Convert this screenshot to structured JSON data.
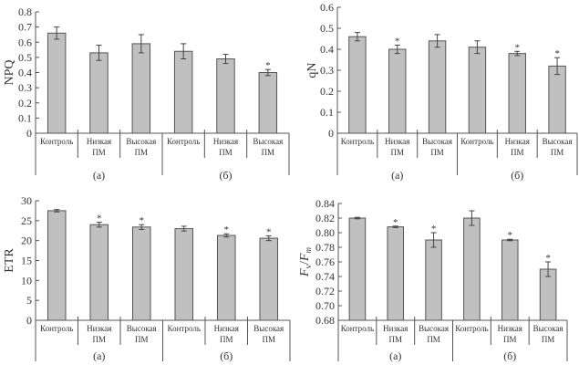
{
  "chart_data": [
    {
      "type": "bar",
      "ylabel": "NPQ",
      "ylim": [
        0,
        0.8
      ],
      "yticks": [
        "0",
        "0.1",
        "0.2",
        "0.3",
        "0.4",
        "0.5",
        "0.6",
        "0.7",
        "0.8"
      ],
      "yticks_values": [
        0,
        0.1,
        0.2,
        0.3,
        0.4,
        0.5,
        0.6,
        0.7,
        0.8
      ],
      "categories": [
        [
          "Контроль"
        ],
        [
          "Низкая",
          "ПМ"
        ],
        [
          "Высокая",
          "ПМ"
        ],
        [
          "Контроль"
        ],
        [
          "Низкая",
          "ПМ"
        ],
        [
          "Высокая",
          "ПМ"
        ]
      ],
      "groups": [
        "(а)",
        "(б)"
      ],
      "values": [
        0.66,
        0.53,
        0.59,
        0.54,
        0.49,
        0.4
      ],
      "errors": [
        0.04,
        0.05,
        0.06,
        0.05,
        0.03,
        0.02
      ],
      "significant": [
        false,
        false,
        false,
        false,
        false,
        true
      ],
      "grid": false
    },
    {
      "type": "bar",
      "ylabel": "qN",
      "ylim": [
        0,
        0.6
      ],
      "yticks": [
        "0",
        "0.1",
        "0.2",
        "0.3",
        "0.4",
        "0.5",
        "0.6"
      ],
      "yticks_values": [
        0,
        0.1,
        0.2,
        0.3,
        0.4,
        0.5,
        0.6
      ],
      "categories": [
        [
          "Контроль"
        ],
        [
          "Низкая",
          "ПМ"
        ],
        [
          "Высокая",
          "ПМ"
        ],
        [
          "Контроль"
        ],
        [
          "Низкая",
          "ПМ"
        ],
        [
          "Высокая",
          "ПМ"
        ]
      ],
      "groups": [
        "(а)",
        "(б)"
      ],
      "values": [
        0.46,
        0.4,
        0.44,
        0.41,
        0.38,
        0.32
      ],
      "errors": [
        0.02,
        0.02,
        0.03,
        0.03,
        0.01,
        0.04
      ],
      "significant": [
        false,
        true,
        false,
        false,
        true,
        true
      ],
      "grid": false
    },
    {
      "type": "bar",
      "ylabel": "ETR",
      "ylim": [
        0,
        30
      ],
      "yticks": [
        "0",
        "5",
        "10",
        "15",
        "20",
        "25",
        "30"
      ],
      "yticks_values": [
        0,
        5,
        10,
        15,
        20,
        25,
        30
      ],
      "categories": [
        [
          "Контроль"
        ],
        [
          "Низкая",
          "ПМ"
        ],
        [
          "Высокая",
          "ПМ"
        ],
        [
          "Контроль"
        ],
        [
          "Низкая",
          "ПМ"
        ],
        [
          "Высокая",
          "ПМ"
        ]
      ],
      "groups": [
        "(а)",
        "(б)"
      ],
      "values": [
        27.5,
        24.0,
        23.4,
        23.0,
        21.3,
        20.6
      ],
      "errors": [
        0.3,
        0.6,
        0.6,
        0.6,
        0.4,
        0.6
      ],
      "significant": [
        false,
        true,
        true,
        false,
        true,
        true
      ],
      "grid": false
    },
    {
      "type": "bar",
      "ylabel": "Fv/Fm",
      "ylabel_main": "F",
      "ylabel_sub1": "v",
      "ylabel_sep": "/",
      "ylabel_sub2": "m",
      "ylim": [
        0.68,
        0.84
      ],
      "yticks": [
        "0.68",
        "0.70",
        "0.72",
        "0.74",
        "0.76",
        "0.78",
        "0.80",
        "0.82",
        "0.84"
      ],
      "yticks_values": [
        0.68,
        0.7,
        0.72,
        0.74,
        0.76,
        0.78,
        0.8,
        0.82,
        0.84
      ],
      "categories": [
        [
          "Контроль"
        ],
        [
          "Низкая",
          "ПМ"
        ],
        [
          "Высокая",
          "ПМ"
        ],
        [
          "Контроль"
        ],
        [
          "Низкая",
          "ПМ"
        ],
        [
          "Высокая",
          "ПМ"
        ]
      ],
      "groups": [
        "(а)",
        "(б)"
      ],
      "values": [
        0.82,
        0.808,
        0.79,
        0.82,
        0.79,
        0.75
      ],
      "errors": [
        0.001,
        0.001,
        0.01,
        0.01,
        0.001,
        0.01
      ],
      "significant": [
        false,
        true,
        true,
        false,
        true,
        true
      ],
      "grid": false
    }
  ],
  "significance_marker": "*",
  "colors": {
    "bar_fill": "#c0c0c0",
    "bar_stroke": "#555555",
    "axis": "#555555",
    "text": "#333333"
  }
}
